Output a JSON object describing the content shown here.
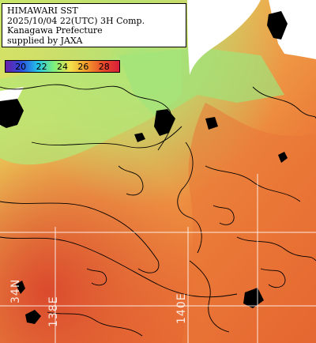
{
  "title": {
    "line1": "HIMAWARI SST",
    "line2": "2025/10/04 22(UTC) 3H Comp.",
    "line3": "Kanagawa Prefecture",
    "line4": "supplied by JAXA"
  },
  "legend": {
    "ticks": [
      "20",
      "22",
      "24",
      "26",
      "28"
    ],
    "colors": [
      "#6a1fa8",
      "#2a4fe0",
      "#25c6e8",
      "#7ff07a",
      "#f4e04a",
      "#f39a2c",
      "#e84a2a",
      "#d81f3a"
    ]
  },
  "grid_labels": {
    "lon_left_top": "34N",
    "lon_left": "138E",
    "lon_right": "140E"
  },
  "colors": {
    "warm": "#ec7a3a",
    "hot": "#e0542c",
    "mid": "#f0a84a",
    "cool": "#cde66a",
    "cold": "#8ee683",
    "land": "#ffffff",
    "cloud": "#000000"
  }
}
